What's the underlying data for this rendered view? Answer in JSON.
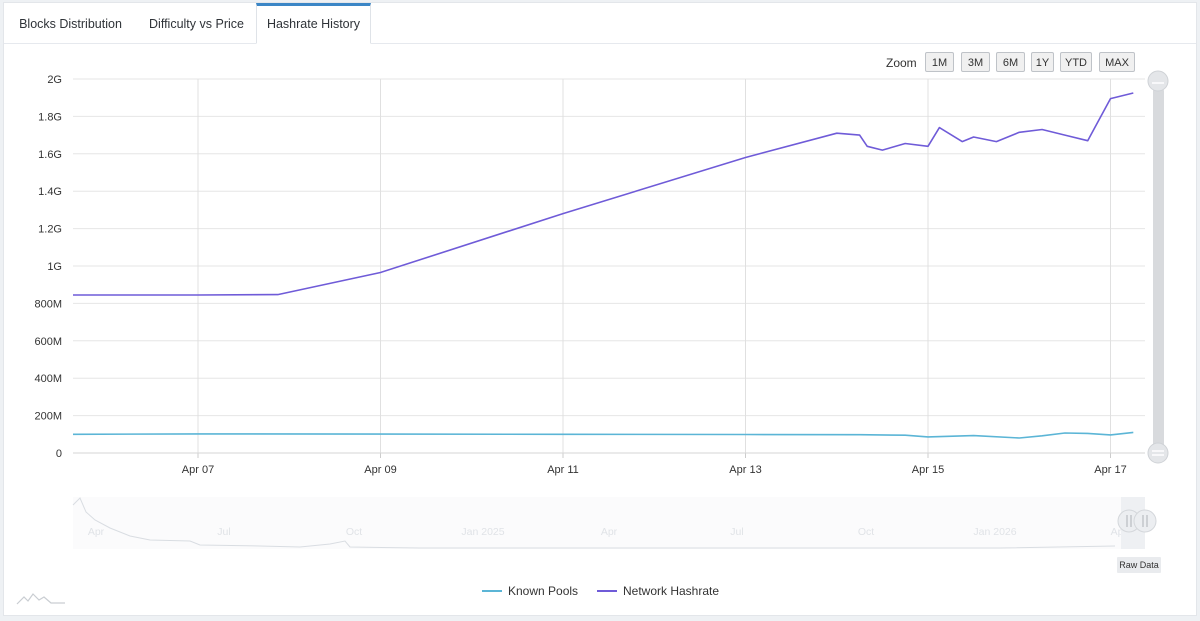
{
  "tabs": [
    {
      "label": "Blocks Distribution",
      "active": false
    },
    {
      "label": "Difficulty vs Price",
      "active": false
    },
    {
      "label": "Hashrate History",
      "active": true
    }
  ],
  "zoom": {
    "label": "Zoom",
    "buttons": [
      "1M",
      "3M",
      "6M",
      "1Y",
      "YTD",
      "MAX"
    ]
  },
  "raw_data_label": "Raw Data",
  "navigator_labels": [
    "Apr",
    "Jul",
    "Oct",
    "Jan 2025",
    "Apr",
    "Jul",
    "Oct",
    "Jan 2026",
    "Ap"
  ],
  "colors": {
    "known_pools": "#5bb5d6",
    "network_hashrate": "#6f5bd8",
    "grid": "#e6e6e6",
    "tab_accent": "#3b86c6"
  },
  "chart_data": {
    "type": "line",
    "title": "",
    "xlabel": "",
    "ylabel": "",
    "x_ticks": [
      "Apr 07",
      "Apr 09",
      "Apr 11",
      "Apr 13",
      "Apr 15",
      "Apr 17"
    ],
    "y_ticks": [
      "0",
      "200M",
      "400M",
      "600M",
      "800M",
      "1G",
      "1.2G",
      "1.4G",
      "1.6G",
      "1.8G",
      "2G"
    ],
    "ylim": [
      0,
      2000000000
    ],
    "grid": true,
    "legend_position": "bottom-center",
    "series": [
      {
        "name": "Known Pools",
        "x": [
          "2026-04-05T15:00",
          "2026-04-07",
          "2026-04-09",
          "2026-04-11",
          "2026-04-13",
          "2026-04-14T06:00",
          "2026-04-14T18:00",
          "2026-04-15",
          "2026-04-15T12:00",
          "2026-04-16",
          "2026-04-16T06:00",
          "2026-04-16T12:00",
          "2026-04-16T18:00",
          "2026-04-17",
          "2026-04-17T06:00"
        ],
        "values": [
          100000000,
          102000000,
          101000000,
          100000000,
          99000000,
          98000000,
          95000000,
          86000000,
          93000000,
          80000000,
          92000000,
          107000000,
          105000000,
          97000000,
          110000000
        ]
      },
      {
        "name": "Network Hashrate",
        "x": [
          "2026-04-05T15:00",
          "2026-04-07",
          "2026-04-07T21:00",
          "2026-04-09",
          "2026-04-11",
          "2026-04-13",
          "2026-04-14",
          "2026-04-14T06:00",
          "2026-04-14T08:00",
          "2026-04-14T12:00",
          "2026-04-14T18:00",
          "2026-04-15",
          "2026-04-15T03:00",
          "2026-04-15T09:00",
          "2026-04-15T12:00",
          "2026-04-15T18:00",
          "2026-04-16",
          "2026-04-16T06:00",
          "2026-04-16T12:00",
          "2026-04-16T18:00",
          "2026-04-17",
          "2026-04-17T06:00"
        ],
        "values": [
          845000000,
          845000000,
          847000000,
          965000000,
          1280000000,
          1580000000,
          1710000000,
          1700000000,
          1640000000,
          1620000000,
          1655000000,
          1640000000,
          1740000000,
          1665000000,
          1690000000,
          1665000000,
          1715000000,
          1730000000,
          1700000000,
          1670000000,
          1895000000,
          1925000000
        ]
      }
    ]
  }
}
